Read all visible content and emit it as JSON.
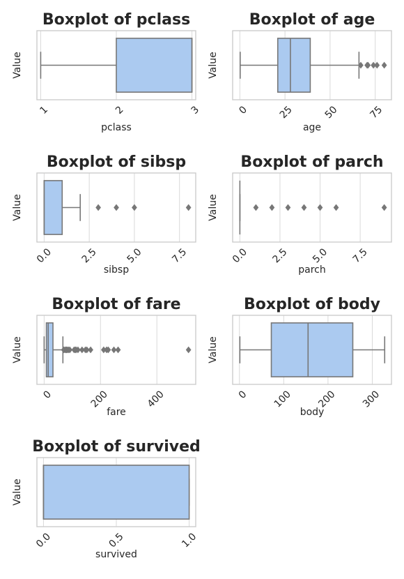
{
  "style": {
    "box_fill": "#abcaf0",
    "box_edge": "#777777",
    "grid": "#d9d9d9",
    "frame": "#cccccc",
    "outlier": "#777777"
  },
  "chart_data": [
    {
      "type": "boxplot",
      "title": "Boxplot of pclass",
      "xlabel": "pclass",
      "ylabel": "Value",
      "xlim": [
        0.95,
        3.05
      ],
      "ticks": [
        1,
        2,
        3
      ],
      "tick_labels": [
        "1",
        "2",
        "3"
      ],
      "whisker_low": 1,
      "q1": 2,
      "median": 3,
      "q3": 3,
      "whisker_high": 3,
      "outliers": []
    },
    {
      "type": "boxplot",
      "title": "Boxplot of age",
      "xlabel": "age",
      "ylabel": "Value",
      "xlim": [
        -4,
        84
      ],
      "ticks": [
        0,
        25,
        50,
        75
      ],
      "tick_labels": [
        "0",
        "25",
        "50",
        "75"
      ],
      "whisker_low": 0.17,
      "q1": 21,
      "median": 28,
      "q3": 39,
      "whisker_high": 66,
      "outliers": [
        67,
        70.5,
        71,
        74,
        76,
        80
      ]
    },
    {
      "type": "boxplot",
      "title": "Boxplot of sibsp",
      "xlabel": "sibsp",
      "ylabel": "Value",
      "xlim": [
        -0.4,
        8.4
      ],
      "ticks": [
        0.0,
        2.5,
        5.0,
        7.5
      ],
      "tick_labels": [
        "0.0",
        "2.5",
        "5.0",
        "7.5"
      ],
      "whisker_low": 0,
      "q1": 0,
      "median": 0,
      "q3": 1,
      "whisker_high": 2,
      "outliers": [
        3,
        4,
        5,
        8
      ]
    },
    {
      "type": "boxplot",
      "title": "Boxplot of parch",
      "xlabel": "parch",
      "ylabel": "Value",
      "xlim": [
        -0.45,
        9.45
      ],
      "ticks": [
        0.0,
        2.5,
        5.0,
        7.5
      ],
      "tick_labels": [
        "0.0",
        "2.5",
        "5.0",
        "7.5"
      ],
      "whisker_low": 0,
      "q1": 0,
      "median": 0,
      "q3": 0,
      "whisker_high": 0,
      "outliers": [
        1,
        2,
        3,
        4,
        5,
        6,
        9
      ]
    },
    {
      "type": "boxplot",
      "title": "Boxplot of fare",
      "xlabel": "fare",
      "ylabel": "Value",
      "xlim": [
        -25.6,
        537.9
      ],
      "ticks": [
        0,
        200,
        400
      ],
      "tick_labels": [
        "0",
        "200",
        "400"
      ],
      "whisker_low": 0,
      "q1": 7.9,
      "median": 14.45,
      "q3": 31.3,
      "whisker_high": 66.6,
      "outliers": [
        69.55,
        73.5,
        77.3,
        79.2,
        82.2,
        86.5,
        91.1,
        106.4,
        110.9,
        113.3,
        120,
        134.5,
        146.5,
        151.6,
        164.9,
        211.3,
        221.8,
        227.5,
        247.5,
        262.4,
        512.3
      ]
    },
    {
      "type": "boxplot",
      "title": "Boxplot of body",
      "xlabel": "body",
      "ylabel": "Value",
      "xlim": [
        -15.3,
        343.3
      ],
      "ticks": [
        0,
        100,
        200,
        300
      ],
      "tick_labels": [
        "0",
        "100",
        "200",
        "300"
      ],
      "whisker_low": 1,
      "q1": 72,
      "median": 155,
      "q3": 256,
      "whisker_high": 328,
      "outliers": []
    },
    {
      "type": "boxplot",
      "title": "Boxplot of survived",
      "xlabel": "survived",
      "ylabel": "Value",
      "xlim": [
        -0.045,
        1.045
      ],
      "ticks": [
        0.0,
        0.5,
        1.0
      ],
      "tick_labels": [
        "0.0",
        "0.5",
        "1.0"
      ],
      "whisker_low": 0,
      "q1": 0,
      "median": 0,
      "q3": 1,
      "whisker_high": 1,
      "outliers": []
    }
  ]
}
